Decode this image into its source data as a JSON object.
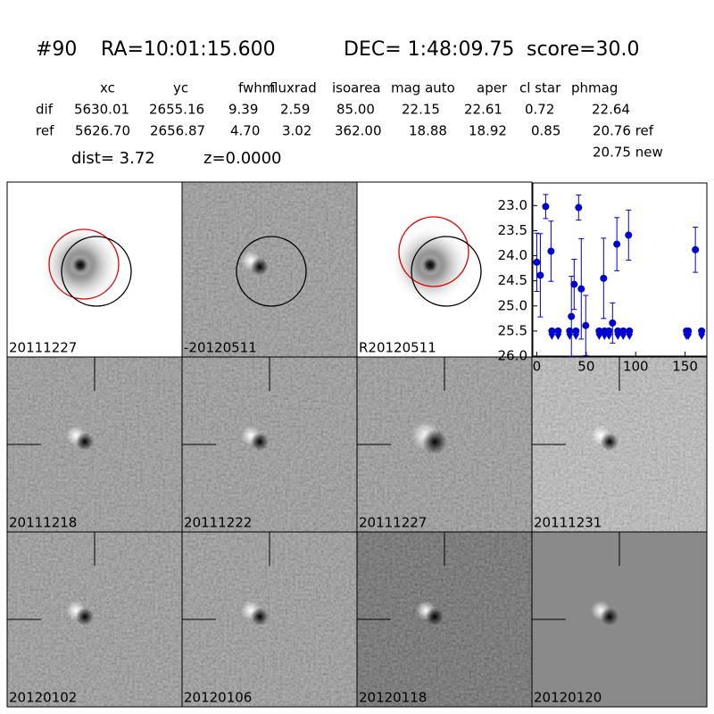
{
  "header": {
    "id": "#90",
    "ra": "RA=10:01:15.600",
    "dec": "DEC= 1:48:09.75",
    "score": "score=30.0"
  },
  "table": {
    "columns": [
      "xc",
      "yc",
      "fwhm",
      "fluxrad",
      "isoarea",
      "mag auto",
      "aper",
      "cl star",
      "phmag"
    ],
    "rows": [
      {
        "label": "dif",
        "cells": [
          "5630.01",
          "2655.16",
          "9.39",
          "2.59",
          "85.00",
          "22.15",
          "22.61",
          "0.72",
          "22.64"
        ]
      },
      {
        "label": "ref",
        "cells": [
          "5626.70",
          "2656.87",
          "4.70",
          "3.02",
          "362.00",
          "18.88",
          "18.92",
          "0.85",
          "20.76 ref"
        ]
      }
    ],
    "extra": "20.75 new"
  },
  "dist": "dist=  3.72",
  "z": "z=0.0000",
  "stamps": [
    "20111227",
    "-20120511",
    "R20120511",
    "20111218",
    "20111222",
    "20111227",
    "20111231",
    "20120102",
    "20120106",
    "20120118",
    "20120120"
  ],
  "light_curve": {
    "type": "scatter",
    "color": "#0000d0",
    "xlim": [
      -4,
      172
    ],
    "ylim": [
      26.0,
      22.55
    ],
    "xticks": [
      0,
      50,
      100,
      150
    ],
    "yticks": [
      {
        "value": 23.0,
        "label": "23.0"
      },
      {
        "value": 23.5,
        "label": "23.5"
      },
      {
        "value": 24.0,
        "label": "24.0"
      },
      {
        "value": 24.5,
        "label": "24.5"
      },
      {
        "value": 25.0,
        "label": "25.0"
      },
      {
        "value": 25.5,
        "label": "25.5"
      },
      {
        "value": 26.0,
        "label": "26.0"
      }
    ],
    "detections": {
      "x": [
        0,
        3.6,
        9,
        14.4,
        35,
        37.8,
        42.3,
        45,
        49.5,
        67.6,
        76.6,
        81,
        92.8,
        160.4
      ],
      "values": [
        24.13,
        24.39,
        23.02,
        23.91,
        25.21,
        24.57,
        23.04,
        24.66,
        25.39,
        24.45,
        25.34,
        23.77,
        23.59,
        23.88
      ],
      "errors": [
        0.58,
        0.83,
        0.24,
        0.6,
        0.8,
        0.5,
        0.25,
        1.0,
        0.6,
        0.8,
        0.4,
        0.53,
        0.5,
        0.45
      ]
    },
    "limits": {
      "x": [
        15.3,
        21.6,
        33.3,
        39.6,
        63.1,
        68.5,
        73,
        82,
        87.4,
        93.7,
        151.4,
        153.2,
        166.7
      ],
      "values": [
        25.5,
        25.5,
        25.5,
        25.5,
        25.5,
        25.5,
        25.5,
        25.5,
        25.5,
        25.5,
        25.5,
        25.5,
        25.5
      ]
    }
  }
}
